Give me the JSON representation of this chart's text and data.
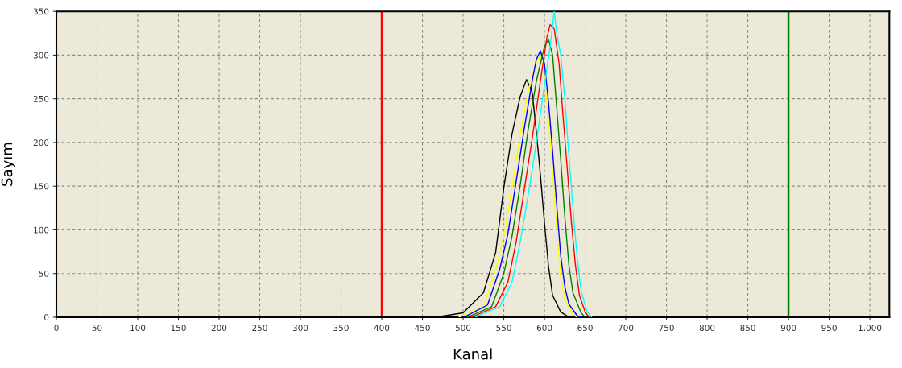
{
  "chart_data": {
    "type": "line",
    "xlabel": "Kanal",
    "ylabel": "Sayım",
    "xlim": [
      0,
      1024
    ],
    "ylim": [
      0,
      350
    ],
    "xticks": [
      0,
      50,
      100,
      150,
      200,
      250,
      300,
      350,
      400,
      450,
      500,
      550,
      600,
      650,
      700,
      750,
      800,
      850,
      900,
      950,
      {
        "value": 1000,
        "label": "1.000"
      }
    ],
    "yticks": [
      0,
      50,
      100,
      150,
      200,
      250,
      300,
      350
    ],
    "grid": true,
    "line_style": "solid",
    "series": [
      {
        "color": "#000000",
        "x": [
          465,
          480,
          500,
          525,
          540,
          550,
          560,
          570,
          575,
          578,
          585,
          590,
          595,
          600,
          605,
          610,
          620,
          630
        ],
        "values": [
          0,
          2,
          5,
          28,
          74,
          148,
          209,
          252,
          265,
          272,
          257,
          212,
          163,
          108,
          58,
          25,
          6,
          0
        ]
      },
      {
        "color": "#ffff00",
        "x": [
          495,
          500,
          525,
          540,
          550,
          560,
          570,
          580,
          590,
          595,
          600,
          605,
          610,
          615,
          620,
          625,
          635,
          640
        ],
        "values": [
          0,
          2,
          12,
          55,
          92,
          148,
          209,
          258,
          292,
          300,
          274,
          225,
          166,
          101,
          46,
          20,
          3,
          0
        ]
      },
      {
        "color": "#0000ff",
        "x": [
          500,
          505,
          530,
          545,
          555,
          565,
          575,
          585,
          590,
          595,
          600,
          605,
          610,
          615,
          620,
          625,
          630,
          640,
          645
        ],
        "values": [
          0,
          2,
          14,
          55,
          95,
          154,
          215,
          271,
          295,
          305,
          290,
          246,
          190,
          129,
          70,
          35,
          15,
          2,
          0
        ]
      },
      {
        "color": "#008000",
        "x": [
          505,
          510,
          535,
          550,
          560,
          570,
          580,
          590,
          600,
          605,
          610,
          615,
          620,
          625,
          630,
          635,
          645,
          650
        ],
        "values": [
          0,
          2,
          12,
          50,
          92,
          150,
          215,
          270,
          310,
          318,
          300,
          240,
          180,
          115,
          60,
          28,
          5,
          0
        ]
      },
      {
        "color": "#ff0000",
        "x": [
          510,
          515,
          540,
          555,
          565,
          575,
          585,
          595,
          603,
          607,
          612,
          618,
          622,
          628,
          633,
          638,
          643,
          650,
          655
        ],
        "values": [
          0,
          2,
          12,
          40,
          85,
          145,
          205,
          270,
          320,
          335,
          330,
          290,
          240,
          170,
          110,
          60,
          25,
          6,
          0
        ]
      },
      {
        "color": "#00ffff",
        "x": [
          515,
          520,
          545,
          560,
          570,
          580,
          590,
          600,
          607,
          612,
          615,
          620,
          625,
          630,
          635,
          640,
          645,
          652,
          658
        ],
        "values": [
          0,
          2,
          12,
          40,
          85,
          140,
          200,
          265,
          310,
          350,
          325,
          300,
          250,
          185,
          125,
          70,
          30,
          7,
          0
        ]
      }
    ],
    "ref_lines": [
      {
        "axis": "x",
        "value": 400,
        "color": "#ff0000"
      },
      {
        "axis": "x",
        "value": 900,
        "color": "#008000"
      }
    ]
  }
}
